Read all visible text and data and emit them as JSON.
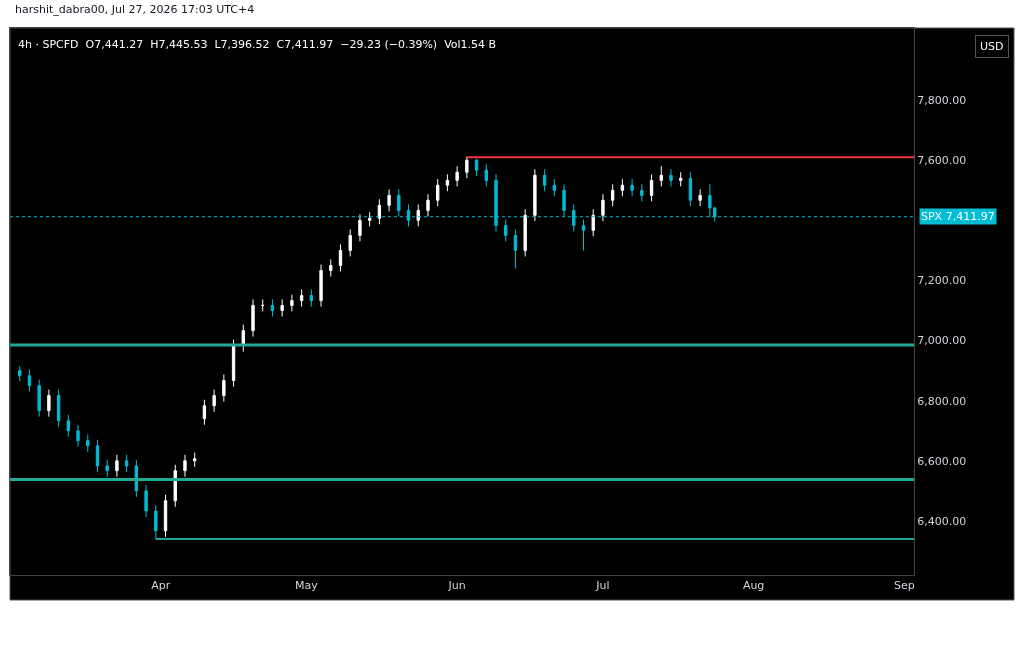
{
  "chart_data": {
    "type": "candlestick",
    "title": "4h · SPCFD  O7,441.27  H7,445.53  L7,396.52  C7,411.97  −29.23 (−0.39%)  Vol1.54 B",
    "annotations": [
      "harshit_dabra00, Jul 27, 2026 17:03 UTC+4",
      "USD"
    ],
    "xlim": [
      "2026-03-01",
      "2026-09-03"
    ],
    "xticks": [
      {
        "value": "2026-04-01",
        "label": "Apr"
      },
      {
        "value": "2026-05-01",
        "label": "May"
      },
      {
        "value": "2026-06-01",
        "label": "Jun"
      },
      {
        "value": "2026-07-01",
        "label": "Jul"
      },
      {
        "value": "2026-08-01",
        "label": "Aug"
      },
      {
        "value": "2026-09-01",
        "label": "Sep"
      }
    ],
    "ylim": [
      6220,
      8040
    ],
    "yticks": [
      {
        "value": 6400,
        "label": "6,400.00"
      },
      {
        "value": 6600,
        "label": "6,600.00"
      },
      {
        "value": 6800,
        "label": "6,800.00"
      },
      {
        "value": 7000,
        "label": "7,000.00"
      },
      {
        "value": 7200,
        "label": "7,200.00"
      },
      {
        "value": 7600,
        "label": "7,600.00"
      },
      {
        "value": 7800,
        "label": "7,800.00"
      }
    ],
    "grid": false,
    "colors": [
      "#ffffff",
      "#00bcd4"
    ],
    "series": [
      {
        "x": [
          "2026-03-03",
          "2026-03-05",
          "2026-03-07",
          "2026-03-09",
          "2026-03-11",
          "2026-03-13",
          "2026-03-15",
          "2026-03-17",
          "2026-03-19",
          "2026-03-21",
          "2026-03-23",
          "2026-03-25",
          "2026-03-27",
          "2026-03-29",
          "2026-03-31",
          "2026-04-02",
          "2026-04-04",
          "2026-04-06",
          "2026-04-08",
          "2026-04-10",
          "2026-04-12",
          "2026-04-14",
          "2026-04-16",
          "2026-04-18",
          "2026-04-20",
          "2026-04-22",
          "2026-04-24",
          "2026-04-26",
          "2026-04-28",
          "2026-04-30",
          "2026-05-02",
          "2026-05-04",
          "2026-05-06",
          "2026-05-08",
          "2026-05-10",
          "2026-05-12",
          "2026-05-14",
          "2026-05-16",
          "2026-05-18",
          "2026-05-20",
          "2026-05-22",
          "2026-05-24",
          "2026-05-26",
          "2026-05-28",
          "2026-05-30",
          "2026-06-01",
          "2026-06-03",
          "2026-06-05",
          "2026-06-07",
          "2026-06-09",
          "2026-06-11",
          "2026-06-13",
          "2026-06-15",
          "2026-06-17",
          "2026-06-19",
          "2026-06-21",
          "2026-06-23",
          "2026-06-25",
          "2026-06-27",
          "2026-06-29",
          "2026-07-01",
          "2026-07-03",
          "2026-07-05",
          "2026-07-07",
          "2026-07-09",
          "2026-07-11",
          "2026-07-13",
          "2026-07-15",
          "2026-07-17",
          "2026-07-19",
          "2026-07-21",
          "2026-07-23",
          "2026-07-24"
        ],
        "ohlc": [
          [
            6900,
            6915,
            6865,
            6883
          ],
          [
            6883,
            6903,
            6830,
            6850
          ],
          [
            6850,
            6870,
            6747,
            6767
          ],
          [
            6767,
            6837,
            6747,
            6817
          ],
          [
            6817,
            6837,
            6713,
            6733
          ],
          [
            6733,
            6753,
            6680,
            6700
          ],
          [
            6700,
            6720,
            6647,
            6667
          ],
          [
            6667,
            6687,
            6630,
            6650
          ],
          [
            6650,
            6670,
            6563,
            6583
          ],
          [
            6583,
            6603,
            6547,
            6567
          ],
          [
            6567,
            6620,
            6547,
            6600
          ],
          [
            6600,
            6620,
            6563,
            6583
          ],
          [
            6583,
            6603,
            6480,
            6500
          ],
          [
            6500,
            6520,
            6413,
            6433
          ],
          [
            6433,
            6453,
            6340,
            6367
          ],
          [
            6367,
            6487,
            6347,
            6467
          ],
          [
            6467,
            6587,
            6447,
            6567
          ],
          [
            6567,
            6620,
            6547,
            6600
          ],
          [
            6600,
            6627,
            6580,
            6607
          ],
          [
            6740,
            6803,
            6720,
            6783
          ],
          [
            6783,
            6837,
            6763,
            6817
          ],
          [
            6817,
            6887,
            6797,
            6867
          ],
          [
            6867,
            7003,
            6847,
            6983
          ],
          [
            6983,
            7053,
            6963,
            7033
          ],
          [
            7033,
            7137,
            7013,
            7117
          ],
          [
            7117,
            7137,
            7097,
            7117
          ],
          [
            7117,
            7137,
            7080,
            7100
          ],
          [
            7100,
            7137,
            7080,
            7117
          ],
          [
            7117,
            7153,
            7097,
            7133
          ],
          [
            7133,
            7170,
            7113,
            7150
          ],
          [
            7150,
            7170,
            7113,
            7133
          ],
          [
            7133,
            7253,
            7113,
            7233
          ],
          [
            7233,
            7270,
            7213,
            7250
          ],
          [
            7250,
            7320,
            7230,
            7300
          ],
          [
            7300,
            7370,
            7280,
            7350
          ],
          [
            7350,
            7420,
            7330,
            7400
          ],
          [
            7400,
            7427,
            7380,
            7407
          ],
          [
            7407,
            7470,
            7387,
            7450
          ],
          [
            7450,
            7503,
            7430,
            7483
          ],
          [
            7483,
            7503,
            7413,
            7433
          ],
          [
            7433,
            7453,
            7380,
            7400
          ],
          [
            7400,
            7453,
            7380,
            7433
          ],
          [
            7433,
            7487,
            7413,
            7467
          ],
          [
            7467,
            7537,
            7447,
            7517
          ],
          [
            7517,
            7553,
            7497,
            7533
          ],
          [
            7533,
            7580,
            7513,
            7560
          ],
          [
            7560,
            7612,
            7540,
            7600
          ],
          [
            7600,
            7605,
            7547,
            7567
          ],
          [
            7567,
            7587,
            7513,
            7533
          ],
          [
            7533,
            7553,
            7363,
            7383
          ],
          [
            7383,
            7403,
            7330,
            7350
          ],
          [
            7350,
            7370,
            7240,
            7300
          ],
          [
            7300,
            7437,
            7280,
            7417
          ],
          [
            7417,
            7570,
            7397,
            7550
          ],
          [
            7550,
            7570,
            7497,
            7517
          ],
          [
            7517,
            7537,
            7480,
            7500
          ],
          [
            7500,
            7520,
            7413,
            7433
          ],
          [
            7433,
            7453,
            7363,
            7383
          ],
          [
            7383,
            7403,
            7300,
            7367
          ],
          [
            7367,
            7437,
            7347,
            7417
          ],
          [
            7417,
            7487,
            7397,
            7467
          ],
          [
            7467,
            7520,
            7447,
            7500
          ],
          [
            7500,
            7537,
            7480,
            7517
          ],
          [
            7517,
            7537,
            7480,
            7500
          ],
          [
            7500,
            7520,
            7463,
            7483
          ],
          [
            7483,
            7553,
            7463,
            7533
          ],
          [
            7533,
            7580,
            7513,
            7550
          ],
          [
            7550,
            7570,
            7513,
            7533
          ],
          [
            7533,
            7560,
            7513,
            7540
          ],
          [
            7540,
            7560,
            7447,
            7467
          ],
          [
            7467,
            7503,
            7447,
            7483
          ],
          [
            7483,
            7520,
            7410,
            7441.27
          ],
          [
            7441.27,
            7445.53,
            7396.52,
            7411.97
          ]
        ]
      },
      {
        "type": "line",
        "color": "#f23645",
        "x": [
          "2026-06-03",
          "2026-09-03"
        ],
        "values": [
          7610,
          7610
        ]
      },
      {
        "type": "line",
        "color": "#22ab94",
        "x": [
          "2026-03-31",
          "2026-09-03"
        ],
        "values": [
          6340,
          6340
        ]
      }
    ],
    "ref_lines": [
      {
        "axis": "y",
        "value": 6985,
        "color": "#22ab94"
      },
      {
        "axis": "y",
        "value": 6538,
        "color": "#22ab94"
      },
      {
        "axis": "y",
        "value": 7411.97,
        "label": "SPX 7,411.97",
        "color": "#00bcd4",
        "line_style": "dotted"
      }
    ]
  }
}
